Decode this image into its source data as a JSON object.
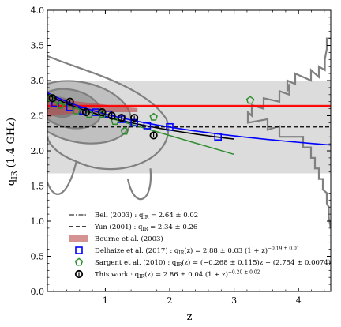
{
  "chart_data": {
    "type": "scatter",
    "xlabel": "z",
    "ylabel": "q_IR (1.4 GHz)",
    "ylabel_main": "q",
    "ylabel_sub": "IR",
    "ylabel_rest": "(1.4 GHz)",
    "xlim": [
      0.1,
      4.5
    ],
    "ylim": [
      0.0,
      4.0
    ],
    "x_ticks": [
      1,
      2,
      3,
      4
    ],
    "y_ticks": [
      0.0,
      0.5,
      1.0,
      1.5,
      2.0,
      2.5,
      3.0,
      3.5,
      4.0
    ],
    "x_tick_labels": [
      "1",
      "2",
      "3",
      "4"
    ],
    "y_tick_labels": [
      "0.0",
      "0.5",
      "1.0",
      "1.5",
      "2.0",
      "2.5",
      "3.0",
      "3.5",
      "4.0"
    ],
    "grey_band": [
      1.68,
      3.0
    ],
    "legend_placement": "lower-center",
    "colors": {
      "bell": "#ff0000",
      "bourne": "#b94a4a",
      "delhaize": "#0000ff",
      "sargent": "#2e8b2e",
      "thiswork": "#000000",
      "contour": "#808080"
    },
    "series": [
      {
        "key": "bell",
        "kind": "hline",
        "y": 2.64,
        "err": 0.02,
        "legend": "Bell (2003) : q_IR = 2.64 ± 0.02",
        "legend_text": "Bell (2003) : q",
        "legend_sub": "IR",
        "legend_rest": " = 2.64 ± 0.02"
      },
      {
        "key": "yun",
        "kind": "hline",
        "y": 2.34,
        "err": 0.26,
        "legend": "Yun (2001) : q_IR = 2.34 ± 0.26",
        "legend_text": "Yun (2001) : q",
        "legend_sub": "IR",
        "legend_rest": " = 2.34 ± 0.26"
      },
      {
        "key": "bourne",
        "kind": "band",
        "legend": "Bourne et al. (2003)",
        "x": [
          0.1,
          0.2,
          0.35,
          0.5,
          0.7,
          0.9,
          1.05,
          1.2,
          1.35,
          1.5
        ],
        "upper": [
          2.85,
          2.78,
          2.74,
          2.71,
          2.69,
          2.67,
          2.65,
          2.63,
          2.62,
          2.61
        ],
        "lower": [
          2.47,
          2.5,
          2.52,
          2.53,
          2.54,
          2.54,
          2.55,
          2.55,
          2.55,
          2.55
        ]
      },
      {
        "key": "delhaize",
        "kind": "points",
        "marker": "square",
        "legend": "Delhaize et al. (2017) : q_IR(z) = 2.88 ± 0.03 (1 + z)^(−0.19 ± 0.01)",
        "legend_text": "Delhaize et al. (2017) : q",
        "legend_sub": "IR",
        "legend_rest": "(z) = 2.88 ± 0.03 (1 + z)",
        "legend_sup": "−0.19 ± 0.01",
        "x": [
          0.22,
          0.45,
          0.65,
          0.85,
          1.05,
          1.25,
          1.45,
          1.65,
          2.0,
          2.75
        ],
        "y": [
          2.68,
          2.62,
          2.57,
          2.55,
          2.52,
          2.45,
          2.4,
          2.36,
          2.34,
          2.2
        ],
        "fit": {
          "a": 2.88,
          "b": -0.19,
          "x_range": [
            0.1,
            4.5
          ]
        }
      },
      {
        "key": "sargent",
        "kind": "points",
        "marker": "pentagon",
        "legend": "Sargent et al. (2010) : q_IR(z) = (−0.268 ± 0.115)z + (2.754 ± 0.0074)",
        "legend_text": "Sargent et al. (2010) : q",
        "legend_sub": "IR",
        "legend_rest": "(z) = (−0.268 ± 0.115)z + (2.754 ± 0.0074)",
        "x": [
          0.15,
          0.3,
          0.55,
          0.75,
          0.95,
          1.15,
          1.3,
          1.75,
          3.25
        ],
        "y": [
          2.75,
          2.65,
          2.57,
          2.52,
          2.52,
          2.42,
          2.28,
          2.48,
          2.72
        ],
        "fit": {
          "slope": -0.268,
          "intercept": 2.754,
          "x_range": [
            0.1,
            3.0
          ]
        }
      },
      {
        "key": "thiswork",
        "kind": "points",
        "marker": "circle",
        "legend": "This work : q_IR(z) = 2.86 ± 0.04 (1 + z)^(−0.20 ± 0.02)",
        "legend_text": "This work : q",
        "legend_sub": "IR",
        "legend_rest": "(z) = 2.86 ± 0.04 (1 + z)",
        "legend_sup": "−0.20 ± 0.02",
        "x": [
          0.18,
          0.45,
          0.7,
          0.95,
          1.1,
          1.25,
          1.45,
          1.75
        ],
        "y": [
          2.75,
          2.7,
          2.55,
          2.55,
          2.5,
          2.47,
          2.47,
          2.22
        ],
        "fit": {
          "a": 2.86,
          "b": -0.2,
          "x_range": [
            0.1,
            3.0
          ]
        }
      }
    ]
  }
}
